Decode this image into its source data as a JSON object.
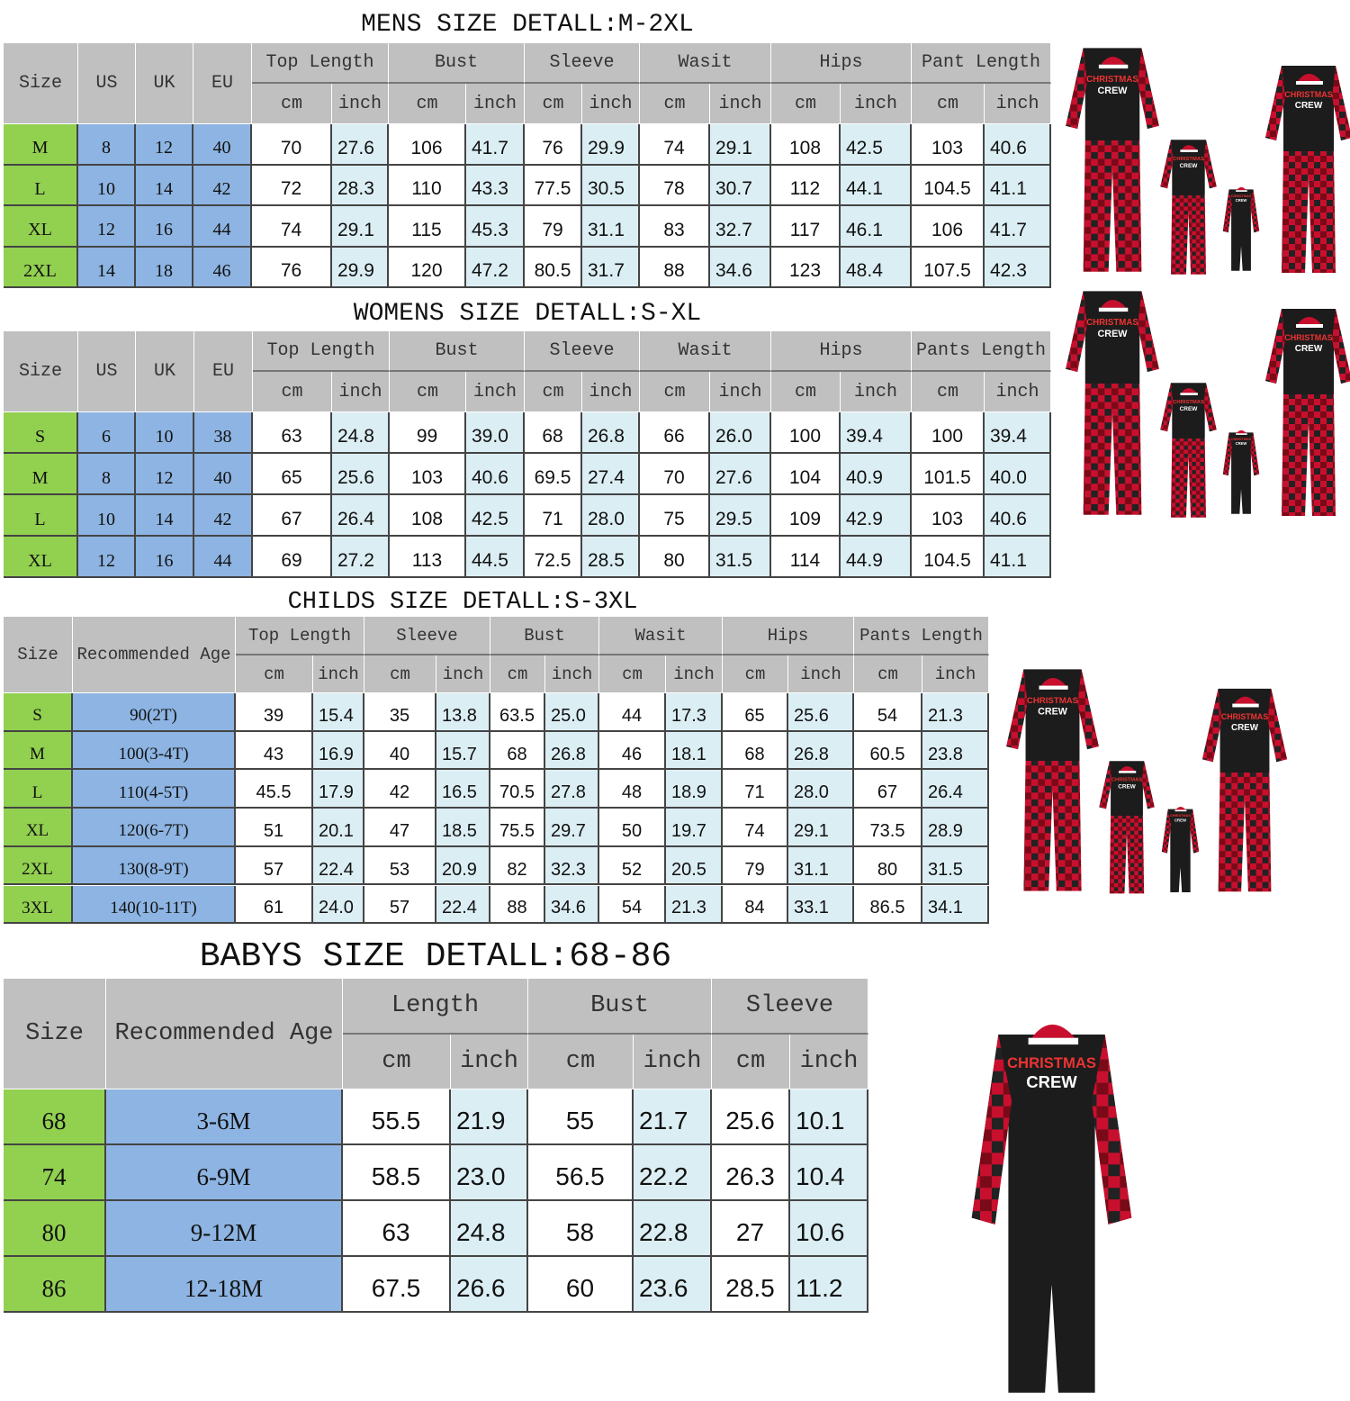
{
  "colors": {
    "size_col": "#92d050",
    "blue_col": "#8db4e2",
    "header": "#c0c0c0",
    "inch_col": "#dbeef4",
    "shirt": "#1c1c1c",
    "plaid_red": "#c8102e"
  },
  "mens": {
    "title": "MENS SIZE DETALL:M-2XL",
    "fixed_headers": [
      "Size",
      "US",
      "UK",
      "EU"
    ],
    "groups": [
      "Top Length",
      "Bust",
      "Sleeve",
      "Wasit",
      "Hips",
      "Pant Length"
    ],
    "units": [
      "cm",
      "inch"
    ],
    "rows": [
      [
        "M",
        "8",
        "12",
        "40",
        "70",
        "27.6",
        "106",
        "41.7",
        "76",
        "29.9",
        "74",
        "29.1",
        "108",
        "42.5",
        "103",
        "40.6"
      ],
      [
        "L",
        "10",
        "14",
        "42",
        "72",
        "28.3",
        "110",
        "43.3",
        "77.5",
        "30.5",
        "78",
        "30.7",
        "112",
        "44.1",
        "104.5",
        "41.1"
      ],
      [
        "XL",
        "12",
        "16",
        "44",
        "74",
        "29.1",
        "115",
        "45.3",
        "79",
        "31.1",
        "83",
        "32.7",
        "117",
        "46.1",
        "106",
        "41.7"
      ],
      [
        "2XL",
        "14",
        "18",
        "46",
        "76",
        "29.9",
        "120",
        "47.2",
        "80.5",
        "31.7",
        "88",
        "34.6",
        "123",
        "48.4",
        "107.5",
        "42.3"
      ]
    ]
  },
  "womens": {
    "title": "WOMENS SIZE DETALL:S-XL",
    "fixed_headers": [
      "Size",
      "US",
      "UK",
      "EU"
    ],
    "groups": [
      "Top Length",
      "Bust",
      "Sleeve",
      "Wasit",
      "Hips",
      "Pants Length"
    ],
    "units": [
      "cm",
      "inch"
    ],
    "rows": [
      [
        "S",
        "6",
        "10",
        "38",
        "63",
        "24.8",
        "99",
        "39.0",
        "68",
        "26.8",
        "66",
        "26.0",
        "100",
        "39.4",
        "100",
        "39.4"
      ],
      [
        "M",
        "8",
        "12",
        "40",
        "65",
        "25.6",
        "103",
        "40.6",
        "69.5",
        "27.4",
        "70",
        "27.6",
        "104",
        "40.9",
        "101.5",
        "40.0"
      ],
      [
        "L",
        "10",
        "14",
        "42",
        "67",
        "26.4",
        "108",
        "42.5",
        "71",
        "28.0",
        "75",
        "29.5",
        "109",
        "42.9",
        "103",
        "40.6"
      ],
      [
        "XL",
        "12",
        "16",
        "44",
        "69",
        "27.2",
        "113",
        "44.5",
        "72.5",
        "28.5",
        "80",
        "31.5",
        "114",
        "44.9",
        "104.5",
        "41.1"
      ]
    ]
  },
  "childs": {
    "title": "CHILDS SIZE DETALL:S-3XL",
    "fixed_headers": [
      "Size",
      "Recommended Age"
    ],
    "groups": [
      "Top Length",
      "Sleeve",
      "Bust",
      "Wasit",
      "Hips",
      "Pants Length"
    ],
    "units": [
      "cm",
      "inch"
    ],
    "rows": [
      [
        "S",
        "90(2T)",
        "39",
        "15.4",
        "35",
        "13.8",
        "63.5",
        "25.0",
        "44",
        "17.3",
        "65",
        "25.6",
        "54",
        "21.3"
      ],
      [
        "M",
        "100(3-4T)",
        "43",
        "16.9",
        "40",
        "15.7",
        "68",
        "26.8",
        "46",
        "18.1",
        "68",
        "26.8",
        "60.5",
        "23.8"
      ],
      [
        "L",
        "110(4-5T)",
        "45.5",
        "17.9",
        "42",
        "16.5",
        "70.5",
        "27.8",
        "48",
        "18.9",
        "71",
        "28.0",
        "67",
        "26.4"
      ],
      [
        "XL",
        "120(6-7T)",
        "51",
        "20.1",
        "47",
        "18.5",
        "75.5",
        "29.7",
        "50",
        "19.7",
        "74",
        "29.1",
        "73.5",
        "28.9"
      ],
      [
        "2XL",
        "130(8-9T)",
        "57",
        "22.4",
        "53",
        "20.9",
        "82",
        "32.3",
        "52",
        "20.5",
        "79",
        "31.1",
        "80",
        "31.5"
      ],
      [
        "3XL",
        "140(10-11T)",
        "61",
        "24.0",
        "57",
        "22.4",
        "88",
        "34.6",
        "54",
        "21.3",
        "84",
        "33.1",
        "86.5",
        "34.1"
      ]
    ]
  },
  "babys": {
    "title": "BABYS SIZE DETALL:68-86",
    "fixed_headers": [
      "Size",
      "Recommended Age"
    ],
    "groups": [
      "Length",
      "Bust",
      "Sleeve"
    ],
    "units": [
      "cm",
      "inch"
    ],
    "rows": [
      [
        "68",
        "3-6M",
        "55.5",
        "21.9",
        "55",
        "21.7",
        "25.6",
        "10.1"
      ],
      [
        "74",
        "6-9M",
        "58.5",
        "23.0",
        "56.5",
        "22.2",
        "26.3",
        "10.4"
      ],
      [
        "80",
        "9-12M",
        "63",
        "24.8",
        "58",
        "22.8",
        "27",
        "10.6"
      ],
      [
        "86",
        "12-18M",
        "67.5",
        "26.6",
        "60",
        "23.6",
        "28.5",
        "11.2"
      ]
    ]
  },
  "images": {
    "lettering": "CHRISTMAS CREW"
  }
}
